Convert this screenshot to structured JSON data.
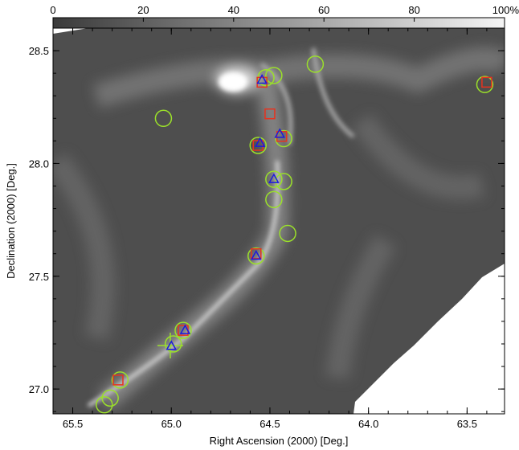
{
  "chart_data": {
    "type": "scatter",
    "xlabel": "Right Ascension (2000) [Deg.]",
    "ylabel": "Declination (2000) [Deg.]",
    "xlim": [
      65.6,
      63.31
    ],
    "ylim": [
      26.89,
      28.6
    ],
    "xticks": [
      65.5,
      {
        "value": 65,
        "label": "65.0"
      },
      64.5,
      {
        "value": 64,
        "label": "64.0"
      },
      63.5
    ],
    "yticks": [
      {
        "value": 27,
        "label": "27.0"
      },
      27.5,
      {
        "value": 28,
        "label": "28.0"
      },
      28.5
    ],
    "series": [
      {
        "marker": "circle",
        "color": "#9be02a",
        "x": [
          64.52,
          64.48,
          64.27,
          65.04,
          64.43,
          64.56,
          64.48,
          64.43,
          64.48,
          64.41,
          64.57,
          64.94,
          64.99,
          65.26,
          65.31,
          65.34,
          63.41
        ],
        "values": [
          28.38,
          28.39,
          28.44,
          28.2,
          28.11,
          28.08,
          27.93,
          27.92,
          27.84,
          27.69,
          27.59,
          27.26,
          27.2,
          27.04,
          26.96,
          26.93,
          28.35
        ]
      },
      {
        "marker": "square",
        "color": "#e8321e",
        "x": [
          64.54,
          64.5,
          64.44,
          64.56,
          64.57,
          64.94,
          65.27,
          63.4
        ],
        "values": [
          28.36,
          28.22,
          28.12,
          28.08,
          27.6,
          27.26,
          27.04,
          28.36
        ]
      },
      {
        "marker": "triangle",
        "color": "#1a1adf",
        "x": [
          64.54,
          64.45,
          64.55,
          64.48,
          64.57,
          64.93,
          65.0
        ],
        "values": [
          28.37,
          28.13,
          28.09,
          27.93,
          27.59,
          27.26,
          27.19
        ]
      }
    ],
    "colorbar": {
      "lim": [
        0,
        100
      ],
      "ticks": [
        0,
        20,
        40,
        60,
        80,
        {
          "value": 100,
          "label": "100%"
        }
      ]
    }
  }
}
